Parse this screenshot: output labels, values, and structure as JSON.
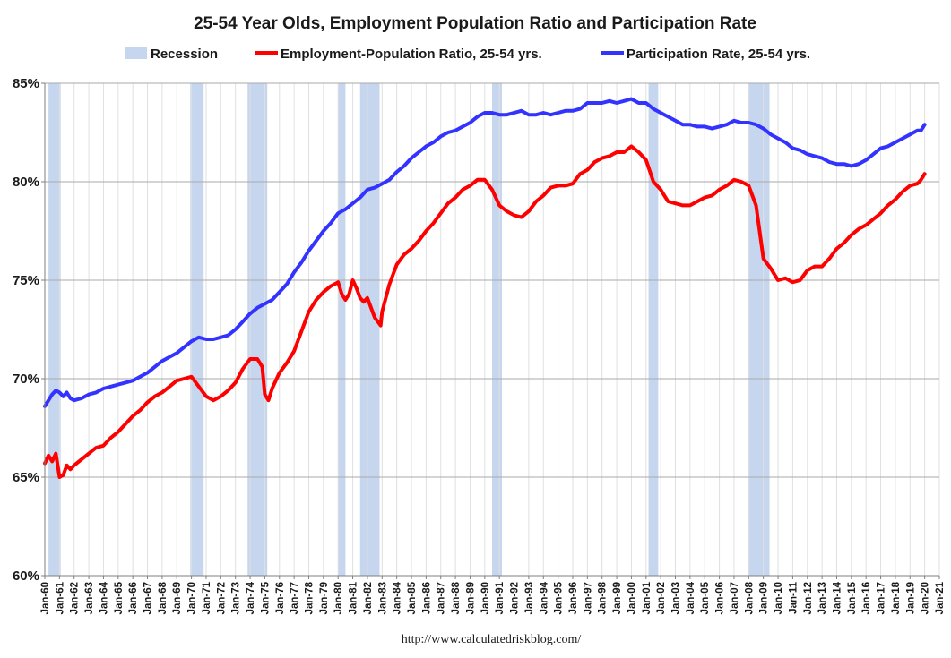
{
  "colors": {
    "recession": "#c5d6ee",
    "epop": "#ff0000",
    "lfpr": "#3333ff",
    "grid_h": "#a9a9a9",
    "grid_v": "#e0e0e0",
    "axis": "#7f7f7f"
  },
  "chart_data": {
    "type": "line",
    "title": "25-54 Year Olds, Employment Population Ratio and Participation Rate",
    "xlabel": "",
    "ylabel": "",
    "source": "http://www.calculatedriskblog.com/",
    "xlim": [
      1960.0,
      2021.0
    ],
    "ylim": [
      60,
      85
    ],
    "yticks": [
      60,
      65,
      70,
      75,
      80,
      85
    ],
    "ytick_labels": [
      "60%",
      "65%",
      "70%",
      "75%",
      "80%",
      "85%"
    ],
    "xtick_labels": [
      "Jan-60",
      "Jan-61",
      "Jan-62",
      "Jan-63",
      "Jan-64",
      "Jan-65",
      "Jan-66",
      "Jan-67",
      "Jan-68",
      "Jan-69",
      "Jan-70",
      "Jan-71",
      "Jan-72",
      "Jan-73",
      "Jan-74",
      "Jan-75",
      "Jan-76",
      "Jan-77",
      "Jan-78",
      "Jan-79",
      "Jan-80",
      "Jan-81",
      "Jan-82",
      "Jan-83",
      "Jan-84",
      "Jan-85",
      "Jan-86",
      "Jan-87",
      "Jan-88",
      "Jan-89",
      "Jan-90",
      "Jan-91",
      "Jan-92",
      "Jan-93",
      "Jan-94",
      "Jan-95",
      "Jan-96",
      "Jan-97",
      "Jan-98",
      "Jan-99",
      "Jan-00",
      "Jan-01",
      "Jan-02",
      "Jan-03",
      "Jan-04",
      "Jan-05",
      "Jan-06",
      "Jan-07",
      "Jan-08",
      "Jan-09",
      "Jan-10",
      "Jan-11",
      "Jan-12",
      "Jan-13",
      "Jan-14",
      "Jan-15",
      "Jan-16",
      "Jan-17",
      "Jan-18",
      "Jan-19",
      "Jan-20",
      "Jan-21"
    ],
    "grid": true,
    "legend": {
      "position": "top",
      "entries": [
        "Recession",
        "Employment-Population Ratio, 25-54 yrs.",
        "Participation Rate, 25-54 yrs."
      ]
    },
    "recessions": [
      [
        1960.25,
        1961.08
      ],
      [
        1969.92,
        1970.83
      ],
      [
        1973.83,
        1975.17
      ],
      [
        1980.0,
        1980.5
      ],
      [
        1981.5,
        1982.83
      ],
      [
        1990.5,
        1991.17
      ],
      [
        2001.17,
        2001.83
      ],
      [
        2007.92,
        2009.42
      ]
    ],
    "series": [
      {
        "name": "Employment-Population Ratio, 25-54 yrs.",
        "x": [
          1960.0,
          1960.25,
          1960.5,
          1960.75,
          1961.0,
          1961.25,
          1961.5,
          1961.75,
          1962.0,
          1962.5,
          1963.0,
          1963.5,
          1964.0,
          1964.5,
          1965.0,
          1965.5,
          1966.0,
          1966.5,
          1967.0,
          1967.5,
          1968.0,
          1968.5,
          1969.0,
          1969.5,
          1970.0,
          1970.5,
          1971.0,
          1971.5,
          1972.0,
          1972.5,
          1973.0,
          1973.5,
          1974.0,
          1974.5,
          1974.83,
          1975.0,
          1975.25,
          1975.5,
          1976.0,
          1976.5,
          1977.0,
          1977.5,
          1978.0,
          1978.5,
          1979.0,
          1979.5,
          1980.0,
          1980.25,
          1980.5,
          1980.75,
          1981.0,
          1981.25,
          1981.5,
          1981.75,
          1982.0,
          1982.5,
          1982.9,
          1983.0,
          1983.5,
          1984.0,
          1984.5,
          1985.0,
          1985.5,
          1986.0,
          1986.5,
          1987.0,
          1987.5,
          1988.0,
          1988.5,
          1989.0,
          1989.5,
          1990.0,
          1990.5,
          1991.0,
          1991.5,
          1992.0,
          1992.5,
          1993.0,
          1993.5,
          1994.0,
          1994.5,
          1995.0,
          1995.5,
          1996.0,
          1996.5,
          1997.0,
          1997.5,
          1998.0,
          1998.5,
          1999.0,
          1999.5,
          2000.0,
          2000.5,
          2001.0,
          2001.5,
          2002.0,
          2002.5,
          2003.0,
          2003.5,
          2004.0,
          2004.5,
          2005.0,
          2005.5,
          2006.0,
          2006.5,
          2007.0,
          2007.5,
          2008.0,
          2008.5,
          2009.0,
          2009.5,
          2010.0,
          2010.5,
          2011.0,
          2011.5,
          2012.0,
          2012.5,
          2013.0,
          2013.5,
          2014.0,
          2014.5,
          2015.0,
          2015.5,
          2016.0,
          2016.5,
          2017.0,
          2017.5,
          2018.0,
          2018.5,
          2019.0,
          2019.5,
          2019.75,
          2020.0
        ],
        "values": [
          65.7,
          66.1,
          65.8,
          66.2,
          65.0,
          65.1,
          65.6,
          65.4,
          65.6,
          65.9,
          66.2,
          66.5,
          66.6,
          67.0,
          67.3,
          67.7,
          68.1,
          68.4,
          68.8,
          69.1,
          69.3,
          69.6,
          69.9,
          70.0,
          70.1,
          69.6,
          69.1,
          68.9,
          69.1,
          69.4,
          69.8,
          70.5,
          71.0,
          71.0,
          70.6,
          69.2,
          68.9,
          69.5,
          70.3,
          70.8,
          71.4,
          72.4,
          73.4,
          74.0,
          74.4,
          74.7,
          74.9,
          74.3,
          74.0,
          74.3,
          75.0,
          74.6,
          74.1,
          73.9,
          74.1,
          73.1,
          72.7,
          73.4,
          74.8,
          75.8,
          76.3,
          76.6,
          77.0,
          77.5,
          77.9,
          78.4,
          78.9,
          79.2,
          79.6,
          79.8,
          80.1,
          80.1,
          79.6,
          78.8,
          78.5,
          78.3,
          78.2,
          78.5,
          79.0,
          79.3,
          79.7,
          79.8,
          79.8,
          79.9,
          80.4,
          80.6,
          81.0,
          81.2,
          81.3,
          81.5,
          81.5,
          81.8,
          81.5,
          81.1,
          80.0,
          79.6,
          79.0,
          78.9,
          78.8,
          78.8,
          79.0,
          79.2,
          79.3,
          79.6,
          79.8,
          80.1,
          80.0,
          79.8,
          78.8,
          76.1,
          75.6,
          75.0,
          75.1,
          74.9,
          75.0,
          75.5,
          75.7,
          75.7,
          76.1,
          76.6,
          76.9,
          77.3,
          77.6,
          77.8,
          78.1,
          78.4,
          78.8,
          79.1,
          79.5,
          79.8,
          79.9,
          80.1,
          80.4
        ]
      },
      {
        "name": "Participation Rate, 25-54 yrs.",
        "x": [
          1960.0,
          1960.25,
          1960.5,
          1960.75,
          1961.0,
          1961.25,
          1961.5,
          1961.75,
          1962.0,
          1962.5,
          1963.0,
          1963.5,
          1964.0,
          1964.5,
          1965.0,
          1965.5,
          1966.0,
          1966.5,
          1967.0,
          1967.5,
          1968.0,
          1968.5,
          1969.0,
          1969.5,
          1970.0,
          1970.5,
          1971.0,
          1971.5,
          1972.0,
          1972.5,
          1973.0,
          1973.5,
          1974.0,
          1974.5,
          1975.0,
          1975.5,
          1976.0,
          1976.5,
          1977.0,
          1977.5,
          1978.0,
          1978.5,
          1979.0,
          1979.5,
          1980.0,
          1980.5,
          1981.0,
          1981.5,
          1982.0,
          1982.5,
          1983.0,
          1983.5,
          1984.0,
          1984.5,
          1985.0,
          1985.5,
          1986.0,
          1986.5,
          1987.0,
          1987.5,
          1988.0,
          1988.5,
          1989.0,
          1989.5,
          1990.0,
          1990.5,
          1991.0,
          1991.5,
          1992.0,
          1992.5,
          1993.0,
          1993.5,
          1994.0,
          1994.5,
          1995.0,
          1995.5,
          1996.0,
          1996.5,
          1997.0,
          1997.5,
          1998.0,
          1998.5,
          1999.0,
          1999.5,
          2000.0,
          2000.5,
          2001.0,
          2001.5,
          2002.0,
          2002.5,
          2003.0,
          2003.5,
          2004.0,
          2004.5,
          2005.0,
          2005.5,
          2006.0,
          2006.5,
          2007.0,
          2007.5,
          2008.0,
          2008.5,
          2009.0,
          2009.5,
          2010.0,
          2010.5,
          2011.0,
          2011.5,
          2012.0,
          2012.5,
          2013.0,
          2013.5,
          2014.0,
          2014.5,
          2015.0,
          2015.5,
          2016.0,
          2016.5,
          2017.0,
          2017.5,
          2018.0,
          2018.5,
          2019.0,
          2019.5,
          2019.75,
          2020.0
        ],
        "values": [
          68.6,
          68.9,
          69.2,
          69.4,
          69.3,
          69.1,
          69.3,
          69.0,
          68.9,
          69.0,
          69.2,
          69.3,
          69.5,
          69.6,
          69.7,
          69.8,
          69.9,
          70.1,
          70.3,
          70.6,
          70.9,
          71.1,
          71.3,
          71.6,
          71.9,
          72.1,
          72.0,
          72.0,
          72.1,
          72.2,
          72.5,
          72.9,
          73.3,
          73.6,
          73.8,
          74.0,
          74.4,
          74.8,
          75.4,
          75.9,
          76.5,
          77.0,
          77.5,
          77.9,
          78.4,
          78.6,
          78.9,
          79.2,
          79.6,
          79.7,
          79.9,
          80.1,
          80.5,
          80.8,
          81.2,
          81.5,
          81.8,
          82.0,
          82.3,
          82.5,
          82.6,
          82.8,
          83.0,
          83.3,
          83.5,
          83.5,
          83.4,
          83.4,
          83.5,
          83.6,
          83.4,
          83.4,
          83.5,
          83.4,
          83.5,
          83.6,
          83.6,
          83.7,
          84.0,
          84.0,
          84.0,
          84.1,
          84.0,
          84.1,
          84.2,
          84.0,
          84.0,
          83.7,
          83.5,
          83.3,
          83.1,
          82.9,
          82.9,
          82.8,
          82.8,
          82.7,
          82.8,
          82.9,
          83.1,
          83.0,
          83.0,
          82.9,
          82.7,
          82.4,
          82.2,
          82.0,
          81.7,
          81.6,
          81.4,
          81.3,
          81.2,
          81.0,
          80.9,
          80.9,
          80.8,
          80.9,
          81.1,
          81.4,
          81.7,
          81.8,
          82.0,
          82.2,
          82.4,
          82.6,
          82.6,
          82.9
        ]
      }
    ]
  }
}
